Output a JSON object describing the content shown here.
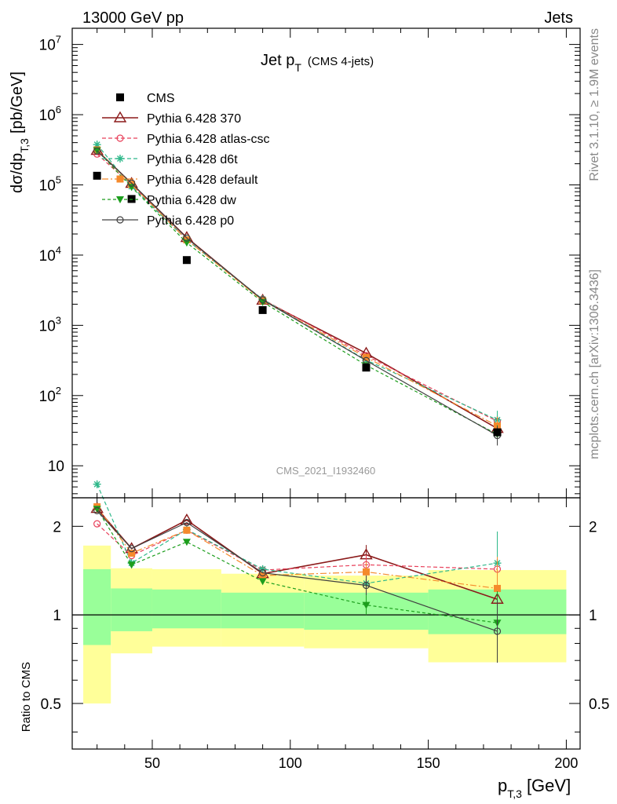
{
  "header": {
    "left": "13000 GeV pp",
    "right": "Jets",
    "title_main": "Jet p",
    "title_sub": "T",
    "title_note": "(CMS 4-jets)",
    "analysis_id": "CMS_2021_I1932460",
    "side_top": "Rivet 3.1.10, ≥ 1.9M events",
    "side_bottom": "mcplots.cern.ch [arXiv:1306.3436]"
  },
  "axes": {
    "y_main_label": "dσ/dp",
    "y_main_sub": "T,3",
    "y_main_unit": "[pb/GeV]",
    "y_ratio_label": "Ratio to CMS",
    "x_label": "p",
    "x_sub": "T,3",
    "x_unit": "[GeV]",
    "x_ticks": [
      "50",
      "100",
      "150",
      "200"
    ],
    "main_ticks": [
      "10",
      "10",
      "10",
      "10",
      "10",
      "10",
      "10"
    ],
    "main_tick_exps": [
      "",
      "2",
      "3",
      "4",
      "5",
      "6",
      "7"
    ],
    "ratio_ticks": [
      "0.5",
      "1",
      "2"
    ]
  },
  "colors": {
    "cms": "#000000",
    "p370": "#8b1a1a",
    "atlas": "#e8405a",
    "d6t": "#2eb88a",
    "default": "#f58a2c",
    "dw": "#1d9e1d",
    "p0": "#404040",
    "band_inner": "#99ff99",
    "band_outer": "#ffff99",
    "side_text": "#888888"
  },
  "chart_data": [
    {
      "type": "scatter",
      "title": "Jet pT (CMS 4-jets)",
      "xlabel": "pT,3 [GeV]",
      "ylabel": "dσ/dpT,3 [pb/GeV]",
      "xlim": [
        21,
        205
      ],
      "ylim": [
        3.5,
        17000000
      ],
      "yscale": "log",
      "legend": "top-left",
      "x": [
        30,
        42.5,
        62.5,
        90,
        127.5,
        175
      ],
      "series": [
        {
          "name": "CMS",
          "values": [
            135000,
            63000,
            8500,
            1650,
            250,
            30
          ]
        },
        {
          "name": "Pythia 6.428 370",
          "values": [
            310000,
            105000,
            17800,
            2280,
            400,
            34
          ]
        },
        {
          "name": "Pythia 6.428 atlas-csc",
          "values": [
            275000,
            100000,
            16500,
            2350,
            370,
            43
          ]
        },
        {
          "name": "Pythia 6.428 d6t",
          "values": [
            375000,
            95000,
            16500,
            2350,
            320,
            45
          ]
        },
        {
          "name": "Pythia 6.428 default",
          "values": [
            315000,
            102000,
            16500,
            2250,
            350,
            37
          ]
        },
        {
          "name": "Pythia 6.428 dw",
          "values": [
            310000,
            93000,
            15000,
            2150,
            270,
            28
          ]
        },
        {
          "name": "Pythia 6.428 p0",
          "values": [
            305000,
            106000,
            17500,
            2300,
            315,
            27
          ]
        }
      ]
    },
    {
      "type": "line",
      "xlabel": "pT,3 [GeV]",
      "ylabel": "Ratio to CMS",
      "xlim": [
        21,
        205
      ],
      "ylim": [
        0.35,
        2.5
      ],
      "yscale": "log",
      "x": [
        30,
        42.5,
        62.5,
        90,
        127.5,
        175
      ],
      "series": [
        {
          "name": "Pythia 6.428 370",
          "values": [
            2.3,
            1.68,
            2.1,
            1.38,
            1.6,
            1.13
          ]
        },
        {
          "name": "Pythia 6.428 atlas-csc",
          "values": [
            2.04,
            1.59,
            1.94,
            1.42,
            1.48,
            1.43
          ]
        },
        {
          "name": "Pythia 6.428 d6t",
          "values": [
            2.78,
            1.5,
            1.95,
            1.43,
            1.28,
            1.5
          ]
        },
        {
          "name": "Pythia 6.428 default",
          "values": [
            2.33,
            1.62,
            1.94,
            1.36,
            1.4,
            1.23
          ]
        },
        {
          "name": "Pythia 6.428 dw",
          "values": [
            2.29,
            1.48,
            1.77,
            1.3,
            1.08,
            0.94
          ]
        },
        {
          "name": "Pythia 6.428 p0",
          "values": [
            2.26,
            1.68,
            2.06,
            1.39,
            1.26,
            0.88
          ]
        }
      ],
      "bands": {
        "bin_edges": [
          25,
          35,
          50,
          75,
          105,
          150,
          200
        ],
        "inner_low": [
          0.79,
          0.88,
          0.9,
          0.9,
          0.89,
          0.86
        ],
        "inner_high": [
          1.43,
          1.23,
          1.22,
          1.19,
          1.19,
          1.22
        ],
        "outer_low": [
          0.5,
          0.74,
          0.78,
          0.78,
          0.77,
          0.69
        ],
        "outer_high": [
          1.72,
          1.44,
          1.43,
          1.38,
          1.36,
          1.42
        ]
      }
    }
  ]
}
